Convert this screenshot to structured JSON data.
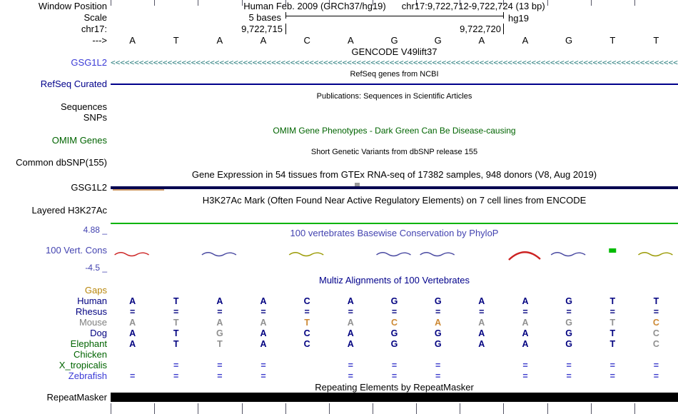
{
  "colors": {
    "navy": "#000080",
    "medium_blue": "#3a3ad6",
    "gencode_teal": "#2e8080",
    "dark_green": "#006400",
    "conservation_blue": "#4343b0",
    "gaps_tan": "#b8860b",
    "mouse_gray": "#808080",
    "green_baseline": "#00b400",
    "repeat_black": "#000000",
    "gtex_bar": "#000050"
  },
  "header": {
    "assembly_line": "Human Feb. 2009 (GRCh37/hg19)",
    "position_line": "chr17:9,722,712-9,722,724 (13 bp)",
    "scale_text": "5 bases",
    "assembly_tag": "hg19",
    "coord_left": "9,722,715",
    "coord_right": "9,722,720"
  },
  "left_labels": {
    "window_position": "Window Position",
    "scale": "Scale",
    "chrom": "chr17:",
    "direction": "--->",
    "gencode_gene": "GSG1L2",
    "refseq_curated": "RefSeq Curated",
    "sequences": "Sequences",
    "snps": "SNPs",
    "omim_genes": "OMIM Genes",
    "dbsnp": "Common dbSNP(155)",
    "gtex_gene": "GSG1L2",
    "h3k27ac": "Layered H3K27Ac",
    "cons_max": "4.88 _",
    "cons_name": "100 Vert. Cons",
    "cons_min": "-4.5 _",
    "repeatmasker": "RepeatMasker"
  },
  "titles": {
    "gencode": "GENCODE V49lift37",
    "refseq": "RefSeq genes from NCBI",
    "publications": "Publications: Sequences in Scientific Articles",
    "omim": "OMIM Gene Phenotypes - Dark Green Can Be Disease-causing",
    "dbsnp": "Short Genetic Variants from dbSNP release 155",
    "gtex": "Gene Expression in 54 tissues from GTEx RNA-seq of 17382 samples, 948 donors (V8, Aug 2019)",
    "h3k27ac": "H3K27Ac Mark (Often Found Near Active Regulatory Elements) on 7 cell lines from ENCODE",
    "conservation": "100 vertebrates Basewise Conservation by PhyloP",
    "multiz": "Multiz Alignments of 100 Vertebrates",
    "repeatmasker": "Repeating Elements by RepeatMasker"
  },
  "sequence": {
    "bases": [
      "A",
      "T",
      "A",
      "A",
      "C",
      "A",
      "G",
      "G",
      "A",
      "A",
      "G",
      "T",
      "T"
    ],
    "chevron_glyph": "<"
  },
  "conservation_marks": [
    {
      "col": 0,
      "shape": "wave",
      "color": "#cc2222"
    },
    {
      "col": 2,
      "shape": "wave",
      "color": "#4747a0"
    },
    {
      "col": 4,
      "shape": "wave",
      "color": "#999900"
    },
    {
      "col": 6,
      "shape": "wave",
      "color": "#4747a0"
    },
    {
      "col": 7,
      "shape": "wave",
      "color": "#4747a0"
    },
    {
      "col": 9,
      "shape": "peak",
      "color": "#cc2222"
    },
    {
      "col": 10,
      "shape": "wave",
      "color": "#4747a0"
    },
    {
      "col": 11,
      "shape": "block",
      "color": "#00bb00"
    },
    {
      "col": 12,
      "shape": "wave",
      "color": "#999900"
    }
  ],
  "alignment": {
    "cell_colors": {
      "nav": "#000080",
      "gry": "#909090",
      "org": "#cc8833",
      "blu": "#3c3ccc"
    },
    "rows": [
      {
        "label": "Gaps",
        "label_color": "#b8860b",
        "cells": []
      },
      {
        "label": "Human",
        "label_color": "#000080",
        "cells": [
          [
            "A",
            "nav"
          ],
          [
            "T",
            "nav"
          ],
          [
            "A",
            "nav"
          ],
          [
            "A",
            "nav"
          ],
          [
            "C",
            "nav"
          ],
          [
            "A",
            "nav"
          ],
          [
            "G",
            "nav"
          ],
          [
            "G",
            "nav"
          ],
          [
            "A",
            "nav"
          ],
          [
            "A",
            "nav"
          ],
          [
            "G",
            "nav"
          ],
          [
            "T",
            "nav"
          ],
          [
            "T",
            "nav"
          ]
        ]
      },
      {
        "label": "Rhesus",
        "label_color": "#000080",
        "cells": [
          [
            "=",
            "nav"
          ],
          [
            "=",
            "nav"
          ],
          [
            "=",
            "nav"
          ],
          [
            "=",
            "nav"
          ],
          [
            "=",
            "nav"
          ],
          [
            "=",
            "nav"
          ],
          [
            "=",
            "nav"
          ],
          [
            "=",
            "nav"
          ],
          [
            "=",
            "nav"
          ],
          [
            "=",
            "nav"
          ],
          [
            "=",
            "nav"
          ],
          [
            "=",
            "nav"
          ],
          [
            "=",
            "nav"
          ]
        ]
      },
      {
        "label": "Mouse",
        "label_color": "#808080",
        "cells": [
          [
            "A",
            "gry"
          ],
          [
            "T",
            "gry"
          ],
          [
            "A",
            "gry"
          ],
          [
            "A",
            "gry"
          ],
          [
            "T",
            "org"
          ],
          [
            "A",
            "gry"
          ],
          [
            "C",
            "org"
          ],
          [
            "A",
            "org"
          ],
          [
            "A",
            "gry"
          ],
          [
            "A",
            "gry"
          ],
          [
            "G",
            "gry"
          ],
          [
            "T",
            "gry"
          ],
          [
            "C",
            "org"
          ]
        ]
      },
      {
        "label": "Dog",
        "label_color": "#000080",
        "cells": [
          [
            "A",
            "nav"
          ],
          [
            "T",
            "nav"
          ],
          [
            "G",
            "gry"
          ],
          [
            "A",
            "nav"
          ],
          [
            "C",
            "nav"
          ],
          [
            "A",
            "nav"
          ],
          [
            "G",
            "nav"
          ],
          [
            "G",
            "nav"
          ],
          [
            "A",
            "nav"
          ],
          [
            "A",
            "nav"
          ],
          [
            "G",
            "nav"
          ],
          [
            "T",
            "nav"
          ],
          [
            "C",
            "gry"
          ]
        ]
      },
      {
        "label": "Elephant",
        "label_color": "#006400",
        "cells": [
          [
            "A",
            "nav"
          ],
          [
            "T",
            "nav"
          ],
          [
            "T",
            "gry"
          ],
          [
            "A",
            "nav"
          ],
          [
            "C",
            "nav"
          ],
          [
            "A",
            "nav"
          ],
          [
            "G",
            "nav"
          ],
          [
            "G",
            "nav"
          ],
          [
            "A",
            "nav"
          ],
          [
            "A",
            "nav"
          ],
          [
            "G",
            "nav"
          ],
          [
            "T",
            "nav"
          ],
          [
            "C",
            "gry"
          ]
        ]
      },
      {
        "label": "Chicken",
        "label_color": "#006400",
        "cells": []
      },
      {
        "label": "X_tropicalis",
        "label_color": "#006400",
        "cells": [
          [
            "",
            ""
          ],
          [
            "=",
            "blu"
          ],
          [
            "=",
            "blu"
          ],
          [
            "=",
            "blu"
          ],
          [
            "",
            ""
          ],
          [
            "=",
            "blu"
          ],
          [
            "=",
            "blu"
          ],
          [
            "=",
            "blu"
          ],
          [
            "",
            ""
          ],
          [
            "=",
            "blu"
          ],
          [
            "=",
            "blu"
          ],
          [
            "=",
            "blu"
          ],
          [
            "=",
            "blu"
          ]
        ]
      },
      {
        "label": "Zebrafish",
        "label_color": "#3a3ad6",
        "cells": [
          [
            "=",
            "blu"
          ],
          [
            "=",
            "blu"
          ],
          [
            "=",
            "blu"
          ],
          [
            "=",
            "blu"
          ],
          [
            "",
            ""
          ],
          [
            "=",
            "blu"
          ],
          [
            "=",
            "blu"
          ],
          [
            "=",
            "blu"
          ],
          [
            "",
            ""
          ],
          [
            "=",
            "blu"
          ],
          [
            "=",
            "blu"
          ],
          [
            "=",
            "blu"
          ],
          [
            "=",
            "blu"
          ]
        ]
      }
    ]
  }
}
